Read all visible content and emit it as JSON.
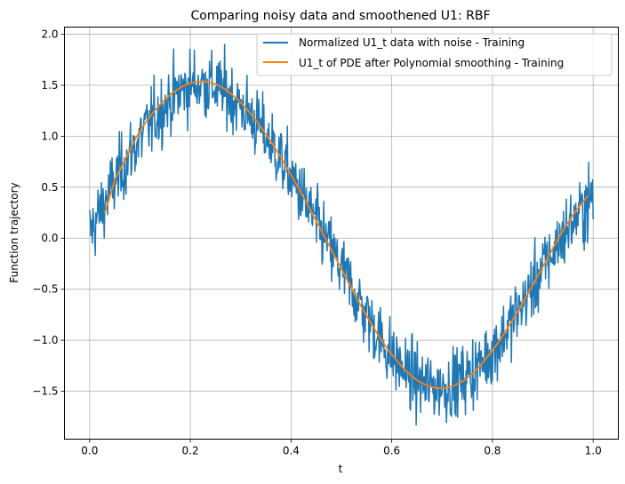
{
  "chart_data": {
    "type": "line",
    "title": "Comparing noisy data and smoothened U1: RBF",
    "xlabel": "t",
    "ylabel": "Function trajectory",
    "xlim": [
      -0.05,
      1.05
    ],
    "ylim": [
      -1.97,
      2.07
    ],
    "xticks": [
      0.0,
      0.2,
      0.4,
      0.6,
      0.8,
      1.0
    ],
    "xtick_labels": [
      "0.0",
      "0.2",
      "0.4",
      "0.6",
      "0.8",
      "1.0"
    ],
    "yticks": [
      -1.5,
      -1.0,
      -0.5,
      0.0,
      0.5,
      1.0,
      1.5,
      2.0
    ],
    "ytick_labels": [
      "−1.5",
      "−1.0",
      "−0.5",
      "0.0",
      "0.5",
      "1.0",
      "1.5",
      "2.0"
    ],
    "grid": true,
    "legend_position": "top-right",
    "series": [
      {
        "name": "Normalized U1_t data with noise - Training",
        "color": "#1f77b4",
        "noise_std": 0.17,
        "x": [
          0.0,
          0.05,
          0.1,
          0.15,
          0.2,
          0.25,
          0.3,
          0.35,
          0.4,
          0.45,
          0.5,
          0.55,
          0.6,
          0.65,
          0.7,
          0.75,
          0.8,
          0.85,
          0.9,
          0.95,
          1.0
        ],
        "y": [
          0.05,
          0.55,
          0.98,
          1.3,
          1.5,
          1.48,
          1.3,
          1.0,
          0.6,
          0.15,
          -0.3,
          -0.75,
          -1.15,
          -1.4,
          -1.45,
          -1.35,
          -1.1,
          -0.72,
          -0.3,
          0.1,
          0.4
        ]
      },
      {
        "name": "U1_t of PDE after Polynomial smoothing - Training",
        "color": "#ff7f0e",
        "x": [
          0.03,
          0.05,
          0.1,
          0.15,
          0.2,
          0.25,
          0.3,
          0.35,
          0.4,
          0.45,
          0.5,
          0.55,
          0.6,
          0.65,
          0.7,
          0.75,
          0.8,
          0.85,
          0.9,
          0.95,
          0.99
        ],
        "y": [
          0.25,
          0.58,
          1.05,
          1.36,
          1.52,
          1.51,
          1.33,
          1.02,
          0.62,
          0.17,
          -0.3,
          -0.76,
          -1.14,
          -1.39,
          -1.47,
          -1.37,
          -1.1,
          -0.72,
          -0.28,
          0.15,
          0.42
        ]
      }
    ]
  }
}
